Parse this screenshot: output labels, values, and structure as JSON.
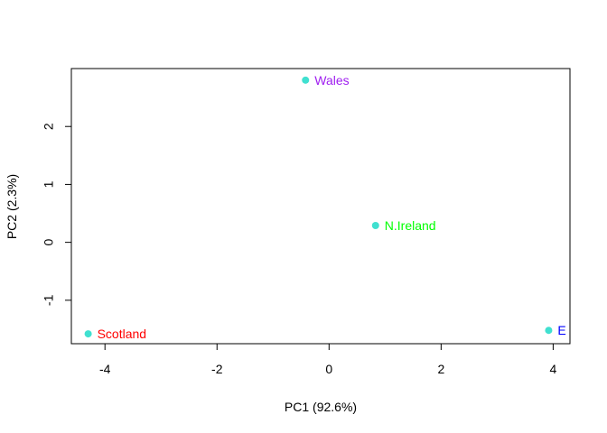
{
  "chart_data": {
    "type": "scatter",
    "title": "",
    "xlabel": "PC1 (92.6%)",
    "ylabel": "PC2 (2.3%)",
    "xlim": [
      -4.6,
      4.3
    ],
    "ylim": [
      -1.75,
      3.0
    ],
    "xticks": [
      -4,
      -2,
      0,
      2,
      4
    ],
    "yticks": [
      -1,
      0,
      1,
      2
    ],
    "grid": false,
    "point_color": "#40e0d0",
    "points": [
      {
        "label": "England",
        "x": 3.92,
        "y": -1.52,
        "label_color": "#0000ff",
        "visible_label": "E"
      },
      {
        "label": "Wales",
        "x": -0.42,
        "y": 2.8,
        "label_color": "#a020f0",
        "visible_label": "Wales"
      },
      {
        "label": "Scotland",
        "x": -4.3,
        "y": -1.58,
        "label_color": "#ff0000",
        "visible_label": "Scotland"
      },
      {
        "label": "N.Ireland",
        "x": 0.83,
        "y": 0.29,
        "label_color": "#00ff00",
        "visible_label": "N.Ireland"
      }
    ]
  }
}
